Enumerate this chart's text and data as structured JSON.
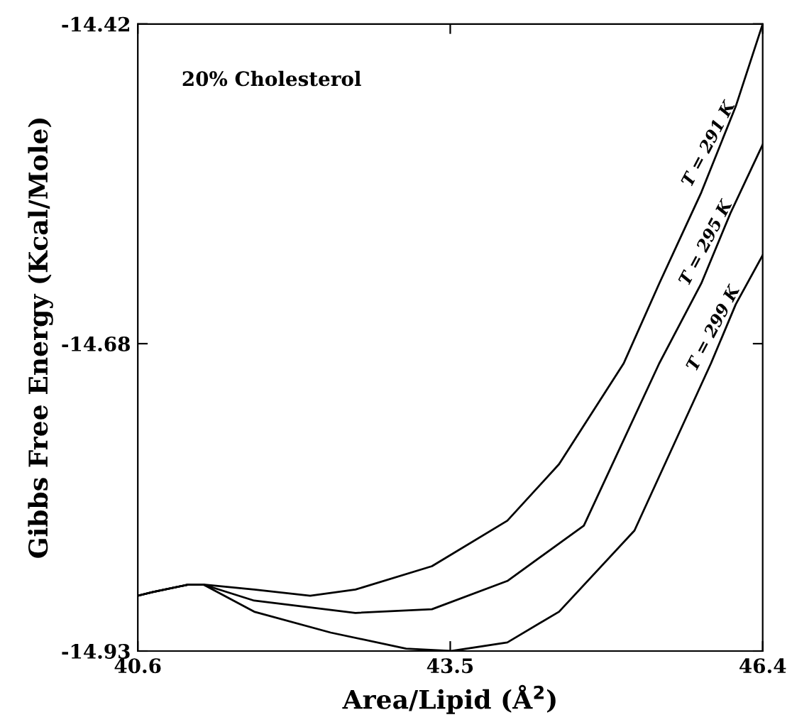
{
  "chart_data": {
    "type": "line",
    "xlabel": "Area/Lipid (Å$^{2}$)",
    "ylabel": "Gibbs Free Energy (Kcal/Mole)",
    "xlim": [
      40.6,
      46.4
    ],
    "ylim": [
      -14.93,
      -14.42
    ],
    "xticks": [
      40.6,
      43.5,
      46.4
    ],
    "yticks": [
      -14.93,
      -14.68,
      -14.42
    ],
    "grid": false,
    "marker": "none",
    "line_style": "solid",
    "series": [
      {
        "name": "T = 291 K",
        "color": "#000000",
        "x": [
          40.6,
          40.74,
          41.07,
          41.21,
          41.68,
          42.2,
          42.62,
          43.33,
          44.03,
          44.51,
          45.11,
          45.44,
          45.83,
          46.15,
          46.4
        ],
        "values": [
          -14.885,
          -14.882,
          -14.876,
          -14.876,
          -14.88,
          -14.885,
          -14.88,
          -14.861,
          -14.824,
          -14.778,
          -14.696,
          -14.631,
          -14.557,
          -14.487,
          -14.42
        ]
      },
      {
        "name": "T = 295 K",
        "color": "#000000",
        "x": [
          40.6,
          40.74,
          41.07,
          41.21,
          41.68,
          42.62,
          43.33,
          44.03,
          44.74,
          45.44,
          45.83,
          46.1,
          46.4
        ],
        "values": [
          -14.885,
          -14.882,
          -14.876,
          -14.876,
          -14.889,
          -14.899,
          -14.896,
          -14.873,
          -14.828,
          -14.696,
          -14.631,
          -14.574,
          -14.518
        ]
      },
      {
        "name": "T = 299 K",
        "color": "#000000",
        "x": [
          40.6,
          40.74,
          41.07,
          41.21,
          41.68,
          42.39,
          43.09,
          43.51,
          44.03,
          44.51,
          45.21,
          45.92,
          46.15,
          46.4
        ],
        "values": [
          -14.885,
          -14.882,
          -14.876,
          -14.876,
          -14.898,
          -14.915,
          -14.928,
          -14.93,
          -14.923,
          -14.898,
          -14.832,
          -14.696,
          -14.648,
          -14.608
        ]
      }
    ],
    "annotations": [
      "20% Cholesterol"
    ]
  }
}
